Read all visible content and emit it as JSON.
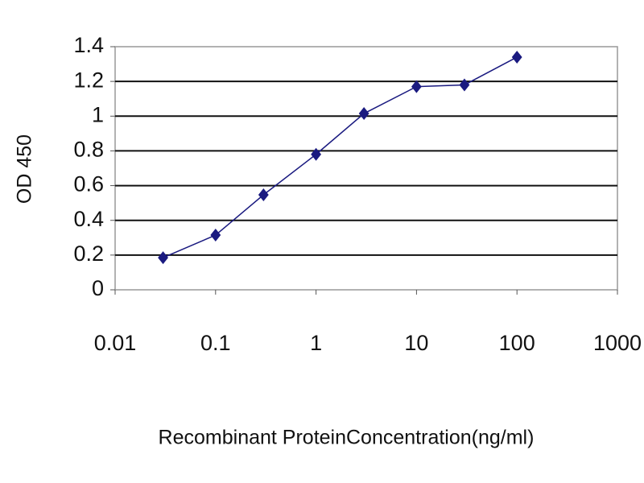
{
  "chart_data": {
    "type": "line",
    "x_label": "Recombinant ProteinConcentration(ng/ml)",
    "y_label": "OD 450",
    "x": [
      0.03,
      0.1,
      0.3,
      1,
      3,
      10,
      30,
      100
    ],
    "series": [
      {
        "color": "#1a1a80",
        "values": [
          0.185,
          0.315,
          0.547,
          0.78,
          1.015,
          1.17,
          1.18,
          1.34
        ]
      }
    ],
    "xscale": "log",
    "xlim": [
      0.01,
      1000
    ],
    "xticks": [
      0.01,
      0.1,
      1,
      10,
      100,
      1000
    ],
    "ylim": [
      0,
      1.4
    ],
    "yticks": [
      0,
      0.2,
      0.4,
      0.6,
      0.8,
      1,
      1.2,
      1.4
    ],
    "grid": true
  }
}
